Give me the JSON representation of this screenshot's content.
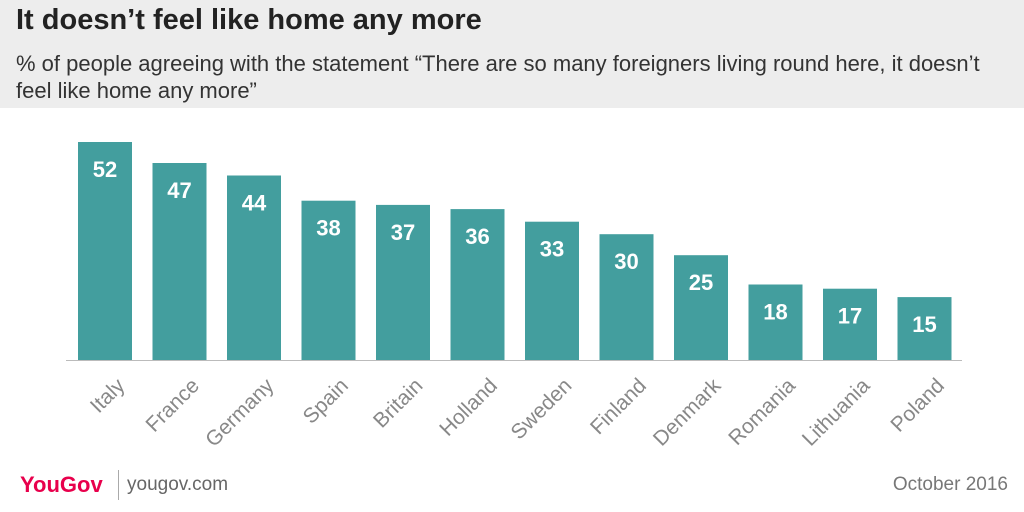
{
  "header": {
    "title": "It doesn’t feel like home any more",
    "subtitle": "% of people agreeing with the statement “There are so many foreigners living round here, it doesn’t feel like home any more”"
  },
  "footer": {
    "brand": "YouGov",
    "url": "yougov.com",
    "date": "October 2016"
  },
  "colors": {
    "bar": "#439e9e",
    "header_bg": "#ededed",
    "brand": "#e8004c"
  },
  "chart_data": {
    "type": "bar",
    "categories": [
      "Italy",
      "France",
      "Germany",
      "Spain",
      "Britain",
      "Holland",
      "Sweden",
      "Finland",
      "Denmark",
      "Romania",
      "Lithuania",
      "Poland"
    ],
    "values": [
      52,
      47,
      44,
      38,
      37,
      36,
      33,
      30,
      25,
      18,
      17,
      15
    ],
    "title": "It doesn’t feel like home any more",
    "xlabel": "",
    "ylabel": "",
    "ylim": [
      0,
      52
    ],
    "grid": false,
    "data_labels": true
  }
}
